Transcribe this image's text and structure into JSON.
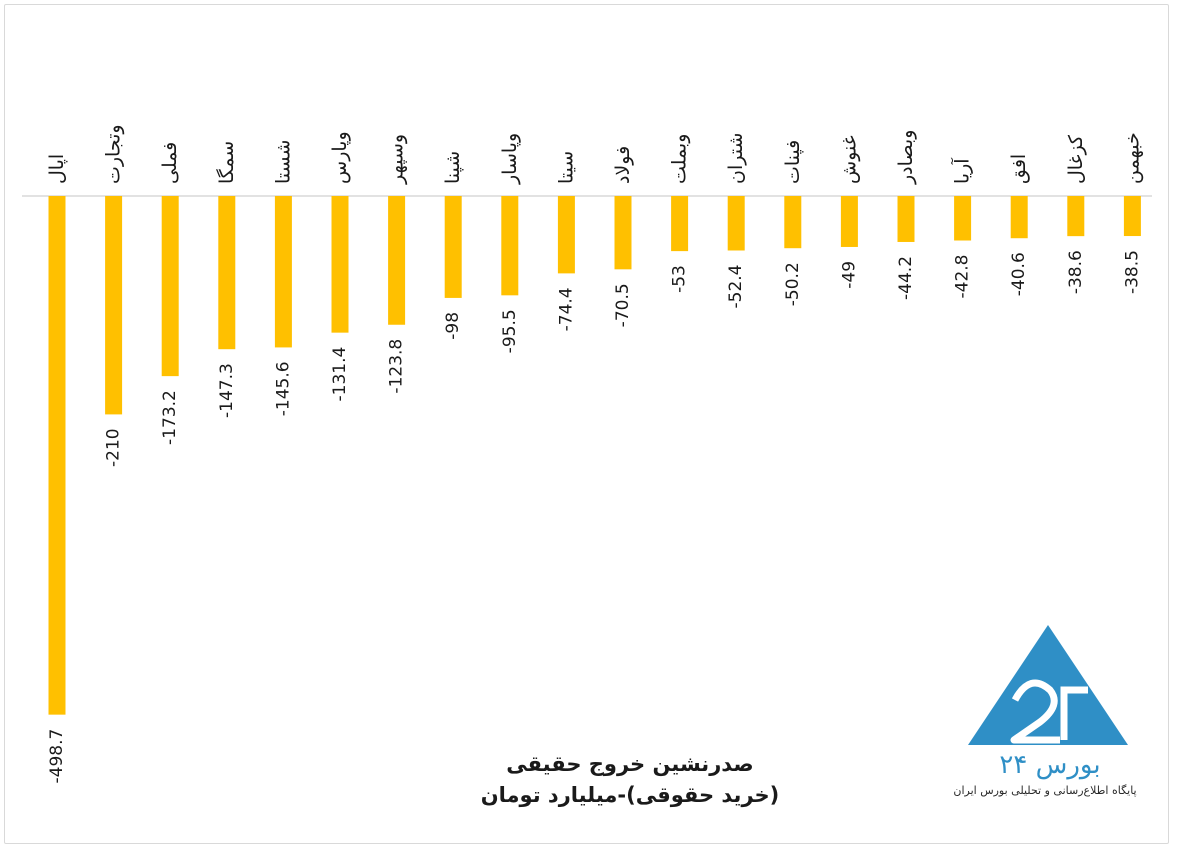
{
  "chart_data": {
    "type": "bar",
    "orientation": "vertical-negative",
    "title": "صدرنشین خروج حقیقی",
    "subtitle": "(خرید حقوقی)-میلیارد تومان",
    "categories": [
      "اپال",
      "وتجارت",
      "فملی",
      "سمگا",
      "شستا",
      "وپارس",
      "وسپهر",
      "شپنا",
      "وپاسار",
      "سیتا",
      "فولاد",
      "وبملت",
      "شتران",
      "فپنات",
      "غنوش",
      "وبصادر",
      "آریا",
      "افق",
      "کزغال",
      "خبهمن"
    ],
    "values": [
      -498.7,
      -210,
      -173.2,
      -147.3,
      -145.6,
      -131.4,
      -123.8,
      -98,
      -95.5,
      -74.4,
      -70.5,
      -53,
      -52.4,
      -50.2,
      -49,
      -44.2,
      -42.8,
      -40.6,
      -38.6,
      -38.5
    ],
    "value_labels": [
      "-498.7",
      "-210",
      "-173.2",
      "-147.3",
      "-145.6",
      "-131.4",
      "-123.8",
      "-98",
      "-95.5",
      "-74.4",
      "-70.5",
      "-53",
      "-52.4",
      "-50.2",
      "-49",
      "-44.2",
      "-42.8",
      "-40.6",
      "-38.6",
      "-38.5"
    ],
    "bar_color": "#ffc000",
    "axis_color": "#d9d9d9",
    "grid": false,
    "legend": "none"
  },
  "logo": {
    "brand": "بورس ۲۴",
    "tagline": "پایگاه اطلاع‌رسانی و تحلیلی بورس ایران",
    "color": "#2f8fc6",
    "icon": "triangle-24-logo-icon"
  }
}
